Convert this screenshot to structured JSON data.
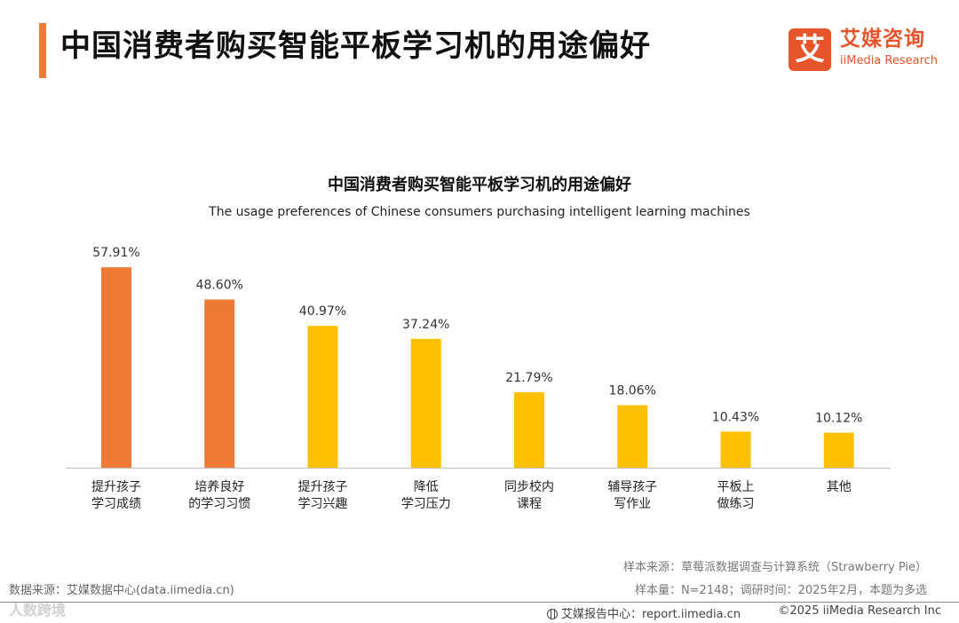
{
  "header": {
    "title": "中国消费者购买智能平板学习机的用途偏好",
    "logo_mark": "艾",
    "logo_cn": "艾媒咨询",
    "logo_en": "iiMedia Research"
  },
  "chart_data": {
    "type": "bar",
    "title": "中国消费者购买智能平板学习机的用途偏好",
    "subtitle": "The usage preferences of Chinese consumers purchasing intelligent learning machines",
    "categories": [
      [
        "提升孩子",
        "学习成绩"
      ],
      [
        "培养良好",
        "的学习习惯"
      ],
      [
        "提升孩子",
        "学习兴趣"
      ],
      [
        "降低",
        "学习压力"
      ],
      [
        "同步校内",
        "课程"
      ],
      [
        "辅导孩子",
        "写作业"
      ],
      [
        "平板上",
        "做练习"
      ],
      [
        "其他"
      ]
    ],
    "values": [
      57.91,
      48.6,
      40.97,
      37.24,
      21.79,
      18.06,
      10.43,
      10.12
    ],
    "value_labels": [
      "57.91%",
      "48.60%",
      "40.97%",
      "37.24%",
      "21.79%",
      "18.06%",
      "10.43%",
      "10.12%"
    ],
    "bar_colors": [
      "#ee7a35",
      "#ee7a35",
      "#ffc000",
      "#ffc000",
      "#ffc000",
      "#ffc000",
      "#ffc000",
      "#ffc000"
    ],
    "unit": "%",
    "ylim": [
      0,
      60
    ],
    "grid": false,
    "legend": "none"
  },
  "footer": {
    "source_left": "数据来源：艾媒数据中心(data.iimedia.cn)",
    "watermark": "人数跨境",
    "sample_source": "样本来源：草莓派数据调查与计算系统（Strawberry Pie）",
    "sample_size": "样本量：N=2148；调研时间：2025年2月，本题为多选",
    "report_center": "艾媒报告中心：report.iimedia.cn",
    "copyright": "©2025  iiMedia Research  Inc"
  },
  "colors": {
    "accent": "#ee7a35",
    "secondary": "#ffc000",
    "brand": "#e8542a"
  }
}
